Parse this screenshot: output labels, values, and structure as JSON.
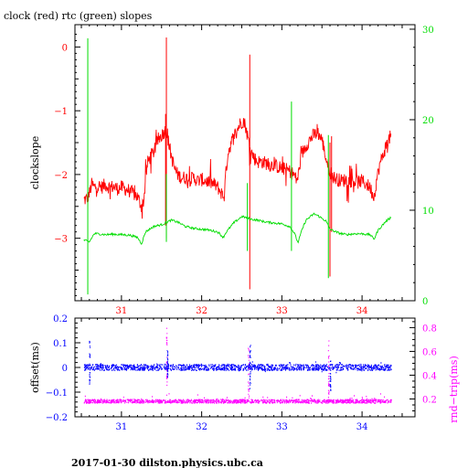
{
  "title": "clock (red) rtc (green) slopes",
  "footer": "2017-01-30  dilston.physics.ubc.ca",
  "colors": {
    "clock": "#ff0000",
    "rtc": "#00dd00",
    "offset": "#0000ff",
    "rndtrip": "#ff00ff",
    "axis": "#000000"
  },
  "chart_data": [
    {
      "type": "line",
      "title": "clock (red) rtc (green) slopes",
      "ylabel": "clockslope",
      "y2label": "",
      "xlim": [
        30.42,
        34.66
      ],
      "ylim": [
        -3.98,
        0.35
      ],
      "y2lim": [
        0,
        30.5
      ],
      "x_ticks": [
        "31",
        "32",
        "33",
        "34"
      ],
      "y_ticks": [
        "0",
        "−1",
        "−2",
        "−3"
      ],
      "y2_ticks": [
        "0",
        "10",
        "20",
        "30"
      ],
      "series": [
        {
          "name": "clock",
          "axis": "left",
          "points": [
            [
              30.53,
              -2.4
            ],
            [
              30.57,
              -2.38
            ],
            [
              30.6,
              -2.3
            ],
            [
              30.63,
              -2.15
            ],
            [
              30.66,
              -2.2
            ],
            [
              30.7,
              -2.18
            ],
            [
              30.75,
              -2.2
            ],
            [
              30.8,
              -2.16
            ],
            [
              30.85,
              -2.2
            ],
            [
              30.9,
              -2.19
            ],
            [
              30.95,
              -2.22
            ],
            [
              31.0,
              -2.2
            ],
            [
              31.05,
              -2.23
            ],
            [
              31.1,
              -2.25
            ],
            [
              31.15,
              -2.3
            ],
            [
              31.2,
              -2.35
            ],
            [
              31.25,
              -2.5
            ],
            [
              31.28,
              -2.4
            ],
            [
              31.3,
              -2.05
            ],
            [
              31.33,
              -1.8
            ],
            [
              31.37,
              -1.7
            ],
            [
              31.4,
              -1.65
            ],
            [
              31.43,
              -1.55
            ],
            [
              31.46,
              -1.45
            ],
            [
              31.49,
              -1.4
            ],
            [
              31.52,
              -1.35
            ],
            [
              31.55,
              -1.3
            ],
            [
              31.58,
              -1.45
            ],
            [
              31.62,
              -1.7
            ],
            [
              31.66,
              -1.9
            ],
            [
              31.7,
              -2.0
            ],
            [
              31.75,
              -2.05
            ],
            [
              31.8,
              -2.05
            ],
            [
              31.85,
              -2.08
            ],
            [
              31.9,
              -2.05
            ],
            [
              31.95,
              -2.1
            ],
            [
              32.0,
              -2.08
            ],
            [
              32.05,
              -2.1
            ],
            [
              32.1,
              -2.12
            ],
            [
              32.15,
              -2.15
            ],
            [
              32.2,
              -2.2
            ],
            [
              32.25,
              -2.3
            ],
            [
              32.28,
              -2.35
            ],
            [
              32.3,
              -2.0
            ],
            [
              32.33,
              -1.65
            ],
            [
              32.37,
              -1.5
            ],
            [
              32.4,
              -1.4
            ],
            [
              32.44,
              -1.3
            ],
            [
              32.48,
              -1.2
            ],
            [
              32.52,
              -1.15
            ],
            [
              32.55,
              -1.25
            ],
            [
              32.58,
              -1.45
            ],
            [
              32.62,
              -1.65
            ],
            [
              32.66,
              -1.75
            ],
            [
              32.7,
              -1.8
            ],
            [
              32.75,
              -1.8
            ],
            [
              32.8,
              -1.82
            ],
            [
              32.85,
              -1.85
            ],
            [
              32.9,
              -1.85
            ],
            [
              32.95,
              -1.88
            ],
            [
              33.0,
              -1.9
            ],
            [
              33.05,
              -1.92
            ],
            [
              33.1,
              -1.95
            ],
            [
              33.15,
              -2.0
            ],
            [
              33.18,
              -2.08
            ],
            [
              33.2,
              -2.05
            ],
            [
              33.23,
              -1.8
            ],
            [
              33.26,
              -1.65
            ],
            [
              33.3,
              -1.55
            ],
            [
              33.35,
              -1.45
            ],
            [
              33.4,
              -1.38
            ],
            [
              33.45,
              -1.35
            ],
            [
              33.5,
              -1.45
            ],
            [
              33.55,
              -1.75
            ],
            [
              33.6,
              -1.95
            ],
            [
              33.65,
              -2.05
            ],
            [
              33.7,
              -2.08
            ],
            [
              33.75,
              -2.1
            ],
            [
              33.8,
              -2.08
            ],
            [
              33.85,
              -2.1
            ],
            [
              33.9,
              -2.1
            ],
            [
              33.95,
              -2.12
            ],
            [
              34.0,
              -2.1
            ],
            [
              34.05,
              -2.15
            ],
            [
              34.1,
              -2.2
            ],
            [
              34.13,
              -2.3
            ],
            [
              34.15,
              -2.35
            ],
            [
              34.18,
              -2.1
            ],
            [
              34.22,
              -1.85
            ],
            [
              34.26,
              -1.7
            ],
            [
              34.3,
              -1.55
            ],
            [
              34.33,
              -1.45
            ],
            [
              34.36,
              -1.4
            ]
          ]
        },
        {
          "name": "rtc",
          "axis": "right",
          "points": [
            [
              30.53,
              6.7
            ],
            [
              30.6,
              6.5
            ],
            [
              30.66,
              7.4
            ],
            [
              30.7,
              7.4
            ],
            [
              30.8,
              7.3
            ],
            [
              30.9,
              7.35
            ],
            [
              31.0,
              7.3
            ],
            [
              31.1,
              7.25
            ],
            [
              31.2,
              7.0
            ],
            [
              31.25,
              6.3
            ],
            [
              31.3,
              7.6
            ],
            [
              31.4,
              8.2
            ],
            [
              31.5,
              8.4
            ],
            [
              31.55,
              8.6
            ],
            [
              31.62,
              8.9
            ],
            [
              31.7,
              8.7
            ],
            [
              31.8,
              8.2
            ],
            [
              31.9,
              8.0
            ],
            [
              32.0,
              7.9
            ],
            [
              32.1,
              7.8
            ],
            [
              32.2,
              7.6
            ],
            [
              32.27,
              7.0
            ],
            [
              32.3,
              7.5
            ],
            [
              32.4,
              8.6
            ],
            [
              32.5,
              9.3
            ],
            [
              32.55,
              9.2
            ],
            [
              32.62,
              9.0
            ],
            [
              32.7,
              8.9
            ],
            [
              32.8,
              8.7
            ],
            [
              32.9,
              8.6
            ],
            [
              33.0,
              8.5
            ],
            [
              33.1,
              8.2
            ],
            [
              33.16,
              7.4
            ],
            [
              33.2,
              6.4
            ],
            [
              33.25,
              7.8
            ],
            [
              33.3,
              8.9
            ],
            [
              33.4,
              9.6
            ],
            [
              33.45,
              9.4
            ],
            [
              33.55,
              8.8
            ],
            [
              33.6,
              7.9
            ],
            [
              33.7,
              7.5
            ],
            [
              33.8,
              7.3
            ],
            [
              33.9,
              7.4
            ],
            [
              34.0,
              7.4
            ],
            [
              34.1,
              7.3
            ],
            [
              34.15,
              6.8
            ],
            [
              34.2,
              7.8
            ],
            [
              34.3,
              8.8
            ],
            [
              34.36,
              9.2
            ]
          ]
        }
      ],
      "spikes": {
        "clock": [
          [
            31.56,
            -3.0,
            0.15
          ],
          [
            32.6,
            -3.8,
            -0.12
          ],
          [
            33.6,
            -3.6,
            -1.5
          ],
          [
            31.55,
            -2.8,
            -1.05
          ],
          [
            33.62,
            -2.9,
            -1.4
          ]
        ],
        "rtc": [
          [
            30.58,
            0.7,
            29.0
          ],
          [
            31.56,
            6.5,
            14.0
          ],
          [
            32.57,
            5.5,
            13.0
          ],
          [
            33.12,
            5.5,
            22.0
          ],
          [
            33.58,
            2.5,
            18.3
          ]
        ]
      }
    },
    {
      "type": "scatter",
      "ylabel": "offset(ms)",
      "y2label": "rnd−trip(ms)",
      "xlim": [
        30.42,
        34.66
      ],
      "ylim": [
        -0.2,
        0.2
      ],
      "y2lim": [
        0.05,
        0.88
      ],
      "x_ticks": [
        "31",
        "32",
        "33",
        "34"
      ],
      "y_ticks": [
        "0.2",
        "0.1",
        "0",
        "−0.1",
        "−0.2"
      ],
      "y2_ticks": [
        "0.8",
        "0.6",
        "0.4",
        "0.2"
      ],
      "series": [
        {
          "name": "offset",
          "axis": "left",
          "x_range": [
            30.53,
            34.36
          ],
          "center": 0.0,
          "spread": 0.012
        },
        {
          "name": "rnd-trip",
          "axis": "right",
          "x_range": [
            30.53,
            34.36
          ],
          "center": 0.18,
          "spread": 0.015
        }
      ],
      "spikes": {
        "offset": [
          [
            30.6,
            -0.07,
            0.11
          ],
          [
            31.57,
            -0.04,
            0.07
          ],
          [
            32.6,
            -0.09,
            0.09
          ],
          [
            33.6,
            -0.1,
            0.03
          ]
        ],
        "rndtrip": [
          [
            31.56,
            0.2,
            0.8
          ],
          [
            32.58,
            0.2,
            0.65
          ],
          [
            33.58,
            0.2,
            0.72
          ]
        ]
      }
    }
  ]
}
